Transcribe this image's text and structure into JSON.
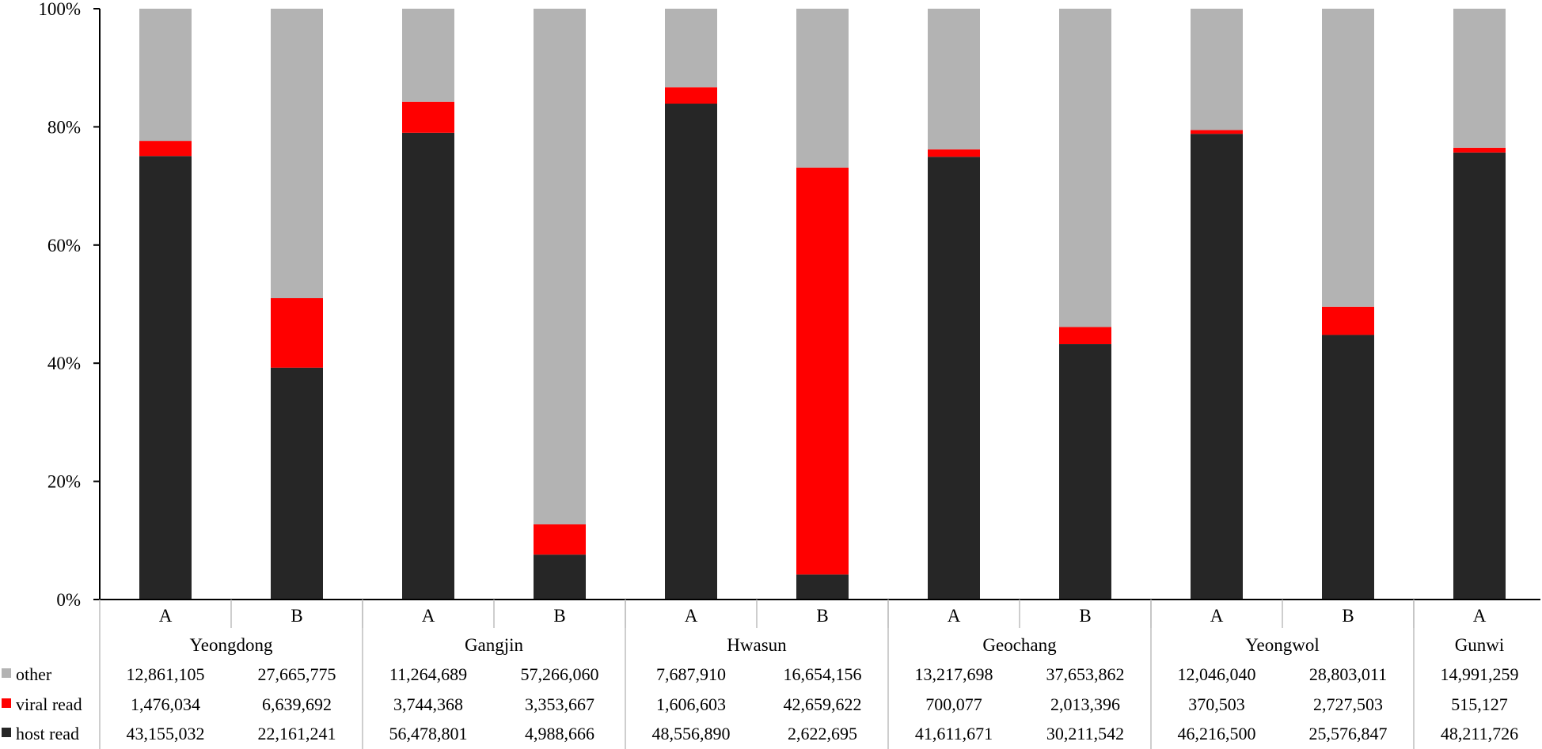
{
  "chart_data": {
    "type": "bar",
    "stacked": "percent",
    "title": "",
    "xlabel": "",
    "ylabel": "",
    "ylim": [
      0,
      100
    ],
    "y_ticks": [
      "0%",
      "20%",
      "40%",
      "60%",
      "80%",
      "100%"
    ],
    "groups": [
      {
        "name": "Yeongdong",
        "samples": [
          "A",
          "B"
        ]
      },
      {
        "name": "Gangjin",
        "samples": [
          "A",
          "B"
        ]
      },
      {
        "name": "Hwasun",
        "samples": [
          "A",
          "B"
        ]
      },
      {
        "name": "Geochang",
        "samples": [
          "A",
          "B"
        ]
      },
      {
        "name": "Yeongwol",
        "samples": [
          "A",
          "B"
        ]
      },
      {
        "name": "Gunwi",
        "samples": [
          "A"
        ]
      }
    ],
    "categories": [
      "A",
      "B",
      "A",
      "B",
      "A",
      "B",
      "A",
      "B",
      "A",
      "B",
      "A"
    ],
    "series": [
      {
        "name": "other",
        "color": "#b3b3b3",
        "labels": [
          "12,861,105",
          "27,665,775",
          "11,264,689",
          "57,266,060",
          "7,687,910",
          "16,654,156",
          "13,217,698",
          "37,653,862",
          "12,046,040",
          "28,803,011",
          "14,991,259"
        ],
        "values": [
          12861105,
          27665775,
          11264689,
          57266060,
          7687910,
          16654156,
          13217698,
          37653862,
          12046040,
          28803011,
          14991259
        ]
      },
      {
        "name": "viral read",
        "color": "#ff0000",
        "labels": [
          "1,476,034",
          "6,639,692",
          "3,744,368",
          "3,353,667",
          "1,606,603",
          "42,659,622",
          "700,077",
          "2,013,396",
          "370,503",
          "2,727,503",
          "515,127"
        ],
        "values": [
          1476034,
          6639692,
          3744368,
          3353667,
          1606603,
          42659622,
          700077,
          2013396,
          370503,
          2727503,
          515127
        ]
      },
      {
        "name": "host read",
        "color": "#262626",
        "labels": [
          "43,155,032",
          "22,161,241",
          "56,478,801",
          "4,988,666",
          "48,556,890",
          "2,622,695",
          "41,611,671",
          "30,211,542",
          "46,216,500",
          "25,576,847",
          "48,211,726"
        ],
        "values": [
          43155032,
          22161241,
          56478801,
          4988666,
          48556890,
          2622695,
          41611671,
          30211542,
          46216500,
          25576847,
          48211726
        ]
      }
    ],
    "legend": "bottom-left data table"
  }
}
